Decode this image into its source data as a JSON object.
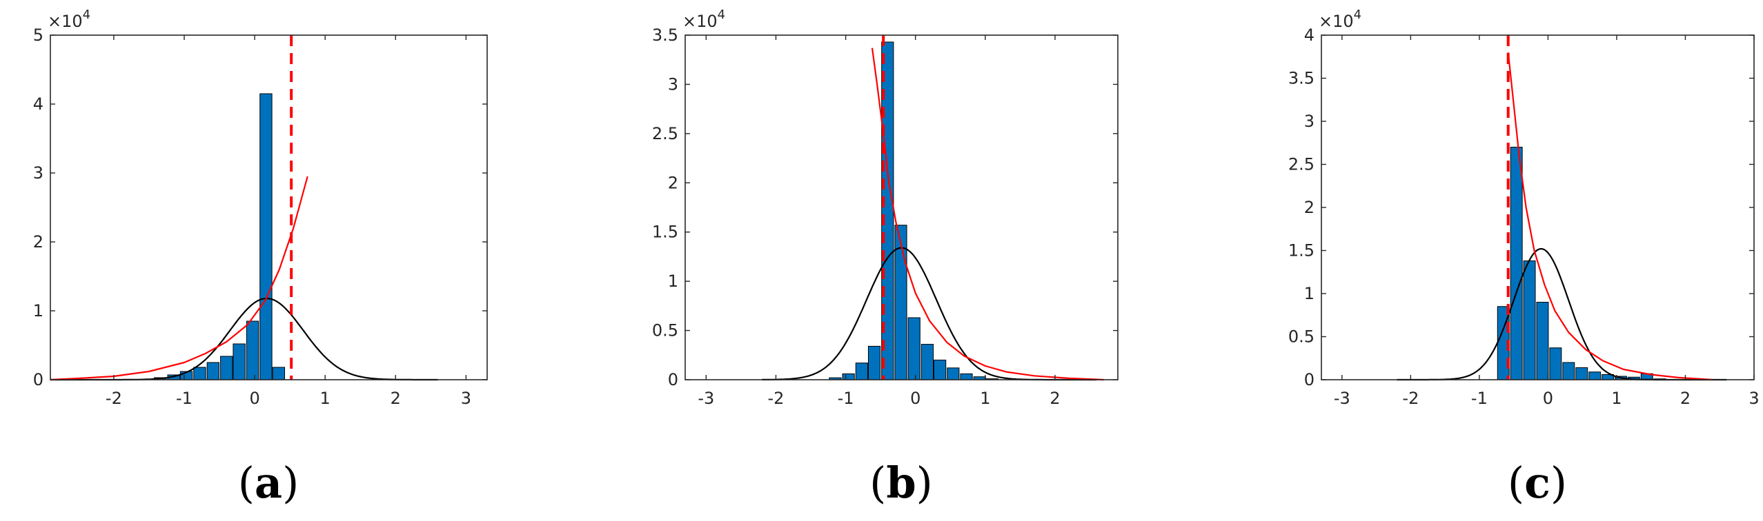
{
  "chart_data": [
    {
      "type": "bar",
      "panel_label": "(a)",
      "label_letter": "a",
      "multiplier": "×10",
      "multiplier_exponent": "4",
      "xlim": [
        -2.9,
        3.3
      ],
      "ylim": [
        0,
        5
      ],
      "xticks": [
        -2,
        -1,
        0,
        1,
        2,
        3
      ],
      "yticks": [
        0,
        1,
        2,
        3,
        4,
        5
      ],
      "bar_color": "#0072BD",
      "bar_width": 0.17,
      "bars": {
        "x": [
          -1.34,
          -1.15,
          -0.97,
          -0.78,
          -0.59,
          -0.4,
          -0.22,
          -0.03,
          0.16,
          0.34,
          0.53
        ],
        "y": [
          0.03,
          0.07,
          0.12,
          0.18,
          0.25,
          0.34,
          0.52,
          0.85,
          4.15,
          0.18,
          0.0
        ]
      },
      "vline": {
        "x": 0.52,
        "color": "#ff0000",
        "style": "dashed"
      },
      "normal_fit": {
        "mean": 0.17,
        "sd": 0.52,
        "peak": 1.18,
        "xrange": [
          -2.9,
          2.6
        ],
        "color": "#000000"
      },
      "red_fit": {
        "x": [
          -2.9,
          -2.5,
          -2.0,
          -1.5,
          -1.0,
          -0.7,
          -0.4,
          -0.1,
          0.15,
          0.35,
          0.55,
          0.75
        ],
        "y": [
          0.0,
          0.02,
          0.05,
          0.12,
          0.25,
          0.38,
          0.55,
          0.8,
          1.15,
          1.6,
          2.2,
          2.95
        ],
        "color": "#ff0000"
      }
    },
    {
      "type": "bar",
      "panel_label": "(b)",
      "label_letter": "b",
      "multiplier": "×10",
      "multiplier_exponent": "4",
      "xlim": [
        -3.3,
        2.9
      ],
      "ylim": [
        0,
        3.5
      ],
      "xticks": [
        -3,
        -2,
        -1,
        0,
        1,
        2
      ],
      "yticks": [
        0,
        0.5,
        1,
        1.5,
        2,
        2.5,
        3,
        3.5
      ],
      "bar_color": "#0072BD",
      "bar_width": 0.17,
      "bars": {
        "x": [
          -1.15,
          -0.96,
          -0.77,
          -0.59,
          -0.4,
          -0.21,
          -0.02,
          0.17,
          0.35,
          0.54,
          0.73,
          0.92,
          1.1
        ],
        "y": [
          0.02,
          0.06,
          0.17,
          0.34,
          3.43,
          1.57,
          0.63,
          0.36,
          0.2,
          0.12,
          0.06,
          0.03,
          0.01
        ]
      },
      "vline": {
        "x": -0.46,
        "color": "#ff0000",
        "style": "dashed"
      },
      "normal_fit": {
        "mean": -0.2,
        "sd": 0.5,
        "peak": 1.34,
        "xrange": [
          -2.2,
          2.6
        ],
        "color": "#000000"
      },
      "red_fit": {
        "x": [
          -0.62,
          -0.55,
          -0.46,
          -0.38,
          -0.28,
          -0.15,
          0.0,
          0.2,
          0.45,
          0.7,
          1.0,
          1.3,
          1.7,
          2.2,
          2.7
        ],
        "y": [
          3.37,
          3.0,
          2.5,
          2.0,
          1.6,
          1.2,
          0.88,
          0.6,
          0.38,
          0.24,
          0.14,
          0.08,
          0.04,
          0.015,
          0.0
        ],
        "color": "#ff0000"
      }
    },
    {
      "type": "bar",
      "panel_label": "(c)",
      "label_letter": "c",
      "multiplier": "×10",
      "multiplier_exponent": "4",
      "xlim": [
        -3.3,
        3.0
      ],
      "ylim": [
        0,
        4
      ],
      "xticks": [
        -3,
        -2,
        -1,
        0,
        1,
        2,
        3
      ],
      "yticks": [
        0,
        0.5,
        1,
        1.5,
        2,
        2.5,
        3,
        3.5,
        4
      ],
      "bar_color": "#0072BD",
      "bar_width": 0.17,
      "bars": {
        "x": [
          -0.65,
          -0.46,
          -0.27,
          -0.08,
          0.11,
          0.3,
          0.49,
          0.68,
          0.87,
          1.06,
          1.25,
          1.44,
          1.63
        ],
        "y": [
          0.85,
          2.7,
          1.38,
          0.9,
          0.37,
          0.2,
          0.14,
          0.09,
          0.06,
          0.04,
          0.03,
          0.07,
          0.01
        ]
      },
      "vline": {
        "x": -0.58,
        "color": "#ff0000",
        "style": "dashed"
      },
      "normal_fit": {
        "mean": -0.1,
        "sd": 0.4,
        "peak": 1.52,
        "xrange": [
          -2.2,
          2.6
        ],
        "color": "#000000"
      },
      "red_fit": {
        "x": [
          -0.58,
          -0.5,
          -0.42,
          -0.32,
          -0.2,
          -0.05,
          0.1,
          0.3,
          0.55,
          0.8,
          1.1,
          1.5,
          1.9,
          2.4
        ],
        "y": [
          3.8,
          3.2,
          2.6,
          2.0,
          1.5,
          1.1,
          0.8,
          0.55,
          0.35,
          0.22,
          0.12,
          0.06,
          0.025,
          0.0
        ],
        "color": "#ff0000"
      }
    }
  ]
}
